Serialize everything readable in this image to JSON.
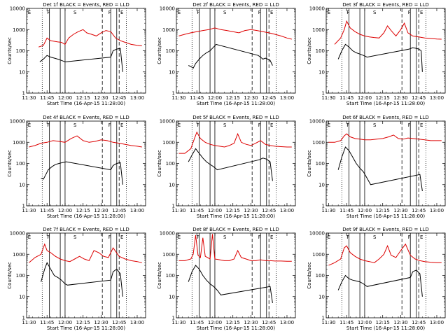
{
  "colors": {
    "events": "#000000",
    "lld": "#dd0000",
    "background": "#ffffff"
  },
  "common": {
    "xlabel": "Start Time (16-Apr-15 11:28:00)",
    "ylabel": "Counts/sec",
    "xticks": [
      "11:30",
      "11:45",
      "12:00",
      "12:15",
      "12:30",
      "12:45",
      "13:00"
    ],
    "yticks": [
      "1",
      "10",
      "100",
      "1000",
      "10000"
    ]
  },
  "chart_data": [
    {
      "type": "line",
      "title": "Det 1f BLACK = Events, RED = LLD",
      "markers": [
        "E",
        "F",
        "S",
        "F",
        "E"
      ],
      "xlabel": "Start Time (16-Apr-15 11:28:00)",
      "ylabel": "Counts/sec",
      "ylim": [
        1,
        10000
      ],
      "yscale": "log",
      "series": [
        {
          "name": "Events",
          "color": "#000000",
          "x": [
            "11:39",
            "11:42",
            "11:45",
            "11:48",
            "11:51",
            "11:54",
            "11:57",
            "12:00",
            "12:01",
            "12:38",
            "12:40",
            "12:43",
            "12:46",
            "12:48"
          ],
          "y": [
            30,
            40,
            60,
            50,
            45,
            40,
            35,
            30,
            30,
            50,
            100,
            120,
            130,
            10
          ]
        },
        {
          "name": "LLD",
          "color": "#dd0000",
          "x": [
            "11:38",
            "11:42",
            "11:45",
            "11:48",
            "11:51",
            "11:54",
            "11:57",
            "12:00",
            "12:03",
            "12:07",
            "12:11",
            "12:15",
            "12:18",
            "12:22",
            "12:26",
            "12:30",
            "12:34",
            "12:38",
            "12:42",
            "12:46",
            "12:50",
            "12:55",
            "13:00",
            "13:04"
          ],
          "y": [
            150,
            180,
            400,
            300,
            280,
            260,
            250,
            200,
            400,
            600,
            800,
            1000,
            700,
            600,
            500,
            700,
            900,
            800,
            400,
            300,
            250,
            200,
            180,
            170
          ]
        }
      ]
    },
    {
      "type": "line",
      "title": "Det 2f BLACK = Events, RED = LLD",
      "markers": [
        "E",
        "F",
        "S",
        "F",
        "E"
      ],
      "xlabel": "Start Time (16-Apr-15 11:28:00)",
      "ylabel": "Counts/sec",
      "ylim": [
        1,
        10000
      ],
      "yscale": "log",
      "series": [
        {
          "name": "Events",
          "color": "#000000",
          "x": [
            "11:38",
            "11:40",
            "11:42",
            "11:44",
            "11:47",
            "11:50",
            "11:53",
            "11:56",
            "11:59",
            "12:01",
            "12:36",
            "12:38",
            "12:40",
            "12:42",
            "12:44",
            "12:46",
            "12:48"
          ],
          "y": [
            20,
            18,
            15,
            25,
            40,
            60,
            80,
            100,
            150,
            200,
            60,
            50,
            40,
            45,
            40,
            35,
            20
          ]
        },
        {
          "name": "LLD",
          "color": "#dd0000",
          "x": [
            "11:30",
            "11:35",
            "11:40",
            "11:45",
            "11:50",
            "11:55",
            "12:00",
            "12:05",
            "12:10",
            "12:15",
            "12:20",
            "12:25",
            "12:30",
            "12:35",
            "12:40",
            "12:45",
            "12:50",
            "12:55",
            "13:00",
            "13:04"
          ],
          "y": [
            500,
            600,
            700,
            800,
            900,
            1000,
            1200,
            1000,
            900,
            800,
            700,
            900,
            1000,
            900,
            800,
            700,
            600,
            500,
            400,
            350
          ]
        }
      ]
    },
    {
      "type": "line",
      "title": "Det 3f BLACK = Events, RED = LLD",
      "markers": [
        "E",
        "F",
        "S",
        "F",
        "E"
      ],
      "xlabel": "Start Time (16-Apr-15 11:28:00)",
      "ylabel": "Counts/sec",
      "ylim": [
        1,
        10000
      ],
      "yscale": "log",
      "series": [
        {
          "name": "Events",
          "color": "#000000",
          "x": [
            "11:38",
            "11:41",
            "11:44",
            "11:47",
            "11:50",
            "11:53",
            "11:56",
            "11:59",
            "12:02",
            "12:37",
            "12:40",
            "12:43",
            "12:45",
            "12:47",
            "12:48"
          ],
          "y": [
            40,
            100,
            200,
            150,
            100,
            80,
            70,
            60,
            50,
            120,
            140,
            130,
            120,
            100,
            10
          ]
        },
        {
          "name": "LLD",
          "color": "#dd0000",
          "x": [
            "11:35",
            "11:40",
            "11:43",
            "11:45",
            "11:48",
            "11:52",
            "11:56",
            "12:00",
            "12:04",
            "12:08",
            "12:12",
            "12:16",
            "12:19",
            "12:22",
            "12:26",
            "12:30",
            "12:33",
            "12:36",
            "12:40",
            "12:45",
            "12:50",
            "12:55",
            "13:00",
            "13:04"
          ],
          "y": [
            200,
            400,
            1000,
            2500,
            1200,
            800,
            600,
            500,
            450,
            420,
            400,
            700,
            1500,
            900,
            500,
            1000,
            2000,
            700,
            500,
            450,
            400,
            380,
            360,
            350
          ]
        }
      ]
    },
    {
      "type": "line",
      "title": "Det 4f BLACK = Events, RED = LLD",
      "markers": [
        "E",
        "F",
        "S",
        "F",
        "E"
      ],
      "xlabel": "Start Time (16-Apr-15 11:28:00)",
      "ylabel": "Counts/sec",
      "ylim": [
        1,
        10000
      ],
      "yscale": "log",
      "series": [
        {
          "name": "Events",
          "color": "#000000",
          "x": [
            "11:40",
            "11:42",
            "11:44",
            "11:46",
            "11:49",
            "11:52",
            "11:55",
            "11:58",
            "12:01",
            "12:38",
            "12:40",
            "12:43",
            "12:46",
            "12:48"
          ],
          "y": [
            20,
            18,
            30,
            50,
            70,
            90,
            100,
            110,
            120,
            50,
            80,
            100,
            110,
            10
          ]
        },
        {
          "name": "LLD",
          "color": "#dd0000",
          "x": [
            "11:30",
            "11:35",
            "11:40",
            "11:45",
            "11:50",
            "11:55",
            "12:00",
            "12:05",
            "12:10",
            "12:15",
            "12:20",
            "12:25",
            "12:30",
            "12:35",
            "12:40",
            "12:45",
            "12:50",
            "12:55",
            "13:00",
            "13:04"
          ],
          "y": [
            600,
            700,
            900,
            1000,
            1200,
            1100,
            1000,
            1500,
            2000,
            1200,
            1000,
            1100,
            1300,
            1200,
            1000,
            900,
            800,
            700,
            650,
            600
          ]
        }
      ]
    },
    {
      "type": "line",
      "title": "Det 5f BLACK = Events, RED = LLD",
      "markers": [
        "E",
        "F",
        "S",
        "F",
        "E"
      ],
      "xlabel": "Start Time (16-Apr-15 11:28:00)",
      "ylabel": "Counts/sec",
      "ylim": [
        1,
        10000
      ],
      "yscale": "log",
      "series": [
        {
          "name": "Events",
          "color": "#000000",
          "x": [
            "11:38",
            "11:41",
            "11:44",
            "11:47",
            "11:50",
            "11:53",
            "11:56",
            "11:59",
            "12:02",
            "12:37",
            "12:40",
            "12:43",
            "12:46",
            "12:48"
          ],
          "y": [
            120,
            250,
            500,
            300,
            180,
            120,
            90,
            70,
            50,
            150,
            180,
            160,
            120,
            15
          ]
        },
        {
          "name": "LLD",
          "color": "#dd0000",
          "x": [
            "11:30",
            "11:35",
            "11:40",
            "11:43",
            "11:45",
            "11:48",
            "11:52",
            "11:56",
            "12:00",
            "12:04",
            "12:08",
            "12:12",
            "12:16",
            "12:19",
            "12:22",
            "12:26",
            "12:30",
            "12:34",
            "12:38",
            "12:42",
            "12:46",
            "12:50",
            "12:55",
            "13:00",
            "13:04"
          ],
          "y": [
            300,
            300,
            500,
            1500,
            3000,
            1500,
            1000,
            800,
            700,
            650,
            600,
            700,
            900,
            2500,
            1000,
            800,
            700,
            900,
            1200,
            800,
            700,
            650,
            620,
            600,
            600
          ]
        }
      ]
    },
    {
      "type": "line",
      "title": "Det 6f BLACK = Events, RED = LLD",
      "markers": [
        "E",
        "F",
        "S",
        "F",
        "E"
      ],
      "xlabel": "Start Time (16-Apr-15 11:28:00)",
      "ylabel": "Counts/sec",
      "ylim": [
        1,
        10000
      ],
      "yscale": "log",
      "series": [
        {
          "name": "Events",
          "color": "#000000",
          "x": [
            "11:38",
            "11:41",
            "11:44",
            "11:47",
            "11:50",
            "11:53",
            "11:56",
            "11:59",
            "12:02",
            "12:05",
            "12:46",
            "12:48"
          ],
          "y": [
            50,
            200,
            600,
            400,
            200,
            100,
            60,
            40,
            20,
            10,
            30,
            5
          ]
        },
        {
          "name": "LLD",
          "color": "#dd0000",
          "x": [
            "11:30",
            "11:35",
            "11:40",
            "11:43",
            "11:45",
            "11:48",
            "11:52",
            "11:56",
            "12:00",
            "12:05",
            "12:10",
            "12:15",
            "12:20",
            "12:24",
            "12:28",
            "12:32",
            "12:36",
            "12:40",
            "12:45",
            "12:50",
            "12:55",
            "13:00",
            "13:04"
          ],
          "y": [
            1000,
            1000,
            1200,
            2000,
            2500,
            1800,
            1500,
            1400,
            1300,
            1300,
            1400,
            1500,
            1800,
            2200,
            1500,
            1400,
            1600,
            1500,
            1400,
            1300,
            1200,
            1200,
            1200
          ]
        }
      ]
    },
    {
      "type": "line",
      "title": "Det 7f BLACK = Events, RED = LLD",
      "markers": [
        "E",
        "F",
        "S",
        "F",
        "E"
      ],
      "xlabel": "Start Time (16-Apr-15 11:28:00)",
      "ylabel": "Counts/sec",
      "ylim": [
        1,
        10000
      ],
      "yscale": "log",
      "series": [
        {
          "name": "Events",
          "color": "#000000",
          "x": [
            "11:40",
            "11:43",
            "11:45",
            "11:48",
            "11:51",
            "11:54",
            "11:57",
            "12:00",
            "12:02",
            "12:38",
            "12:40",
            "12:43",
            "12:46",
            "12:48"
          ],
          "y": [
            50,
            200,
            400,
            200,
            100,
            80,
            60,
            40,
            35,
            60,
            150,
            200,
            120,
            10
          ]
        },
        {
          "name": "LLD",
          "color": "#dd0000",
          "x": [
            "11:30",
            "11:35",
            "11:40",
            "11:43",
            "11:45",
            "11:48",
            "11:52",
            "11:56",
            "12:00",
            "12:04",
            "12:08",
            "12:12",
            "12:16",
            "12:20",
            "12:24",
            "12:28",
            "12:32",
            "12:36",
            "12:40",
            "12:45",
            "12:50",
            "12:55",
            "13:00",
            "13:04"
          ],
          "y": [
            400,
            700,
            1000,
            3000,
            1500,
            1200,
            800,
            600,
            500,
            450,
            600,
            800,
            600,
            500,
            1500,
            1200,
            800,
            700,
            2000,
            800,
            600,
            500,
            450,
            400
          ]
        }
      ]
    },
    {
      "type": "line",
      "title": "Det 8f BLACK = Events, RED = LLD",
      "markers": [
        "E",
        "F",
        "S",
        "F",
        "E"
      ],
      "xlabel": "Start Time (16-Apr-15 11:28:00)",
      "ylabel": "Counts/sec",
      "ylim": [
        1,
        10000
      ],
      "yscale": "log",
      "series": [
        {
          "name": "Events",
          "color": "#000000",
          "x": [
            "11:38",
            "11:41",
            "11:44",
            "11:47",
            "11:50",
            "11:53",
            "11:56",
            "11:59",
            "12:02",
            "12:05",
            "12:46",
            "12:48"
          ],
          "y": [
            50,
            150,
            300,
            200,
            100,
            60,
            40,
            30,
            20,
            12,
            30,
            5
          ]
        },
        {
          "name": "LLD",
          "color": "#dd0000",
          "x": [
            "11:30",
            "11:35",
            "11:40",
            "11:42",
            "11:44",
            "11:46",
            "11:48",
            "11:50",
            "11:52",
            "11:54",
            "11:56",
            "11:58",
            "12:00",
            "12:04",
            "12:08",
            "12:12",
            "12:16",
            "12:19",
            "12:22",
            "12:26",
            "12:30",
            "12:34",
            "12:38",
            "12:42",
            "12:46",
            "12:50",
            "12:55",
            "13:00",
            "13:04"
          ],
          "y": [
            500,
            500,
            600,
            1000,
            8000,
            900,
            700,
            6000,
            800,
            700,
            600,
            9000,
            600,
            550,
            500,
            500,
            600,
            1500,
            700,
            600,
            500,
            500,
            550,
            500,
            500,
            480,
            480,
            470,
            470
          ]
        }
      ]
    },
    {
      "type": "line",
      "title": "Det 9f BLACK = Events, RED = LLD",
      "markers": [
        "E",
        "F",
        "S",
        "F",
        "E"
      ],
      "xlabel": "Start Time (16-Apr-15 11:28:00)",
      "ylabel": "Counts/sec",
      "ylim": [
        1,
        10000
      ],
      "yscale": "log",
      "series": [
        {
          "name": "Events",
          "color": "#000000",
          "x": [
            "11:38",
            "11:41",
            "11:44",
            "11:47",
            "11:50",
            "11:53",
            "11:56",
            "11:59",
            "12:02",
            "12:38",
            "12:40",
            "12:43",
            "12:46",
            "12:48"
          ],
          "y": [
            20,
            50,
            100,
            70,
            60,
            55,
            50,
            40,
            30,
            80,
            150,
            180,
            120,
            10
          ]
        },
        {
          "name": "LLD",
          "color": "#dd0000",
          "x": [
            "11:30",
            "11:35",
            "11:40",
            "11:43",
            "11:45",
            "11:48",
            "11:52",
            "11:56",
            "12:00",
            "12:04",
            "12:08",
            "12:12",
            "12:16",
            "12:19",
            "12:22",
            "12:26",
            "12:30",
            "12:34",
            "12:38",
            "12:42",
            "12:46",
            "12:50",
            "12:55",
            "13:00",
            "13:04"
          ],
          "y": [
            300,
            400,
            600,
            2000,
            2500,
            1200,
            800,
            600,
            500,
            450,
            400,
            600,
            1000,
            2500,
            900,
            700,
            1500,
            3000,
            900,
            600,
            500,
            450,
            420,
            400,
            400
          ]
        }
      ]
    }
  ]
}
